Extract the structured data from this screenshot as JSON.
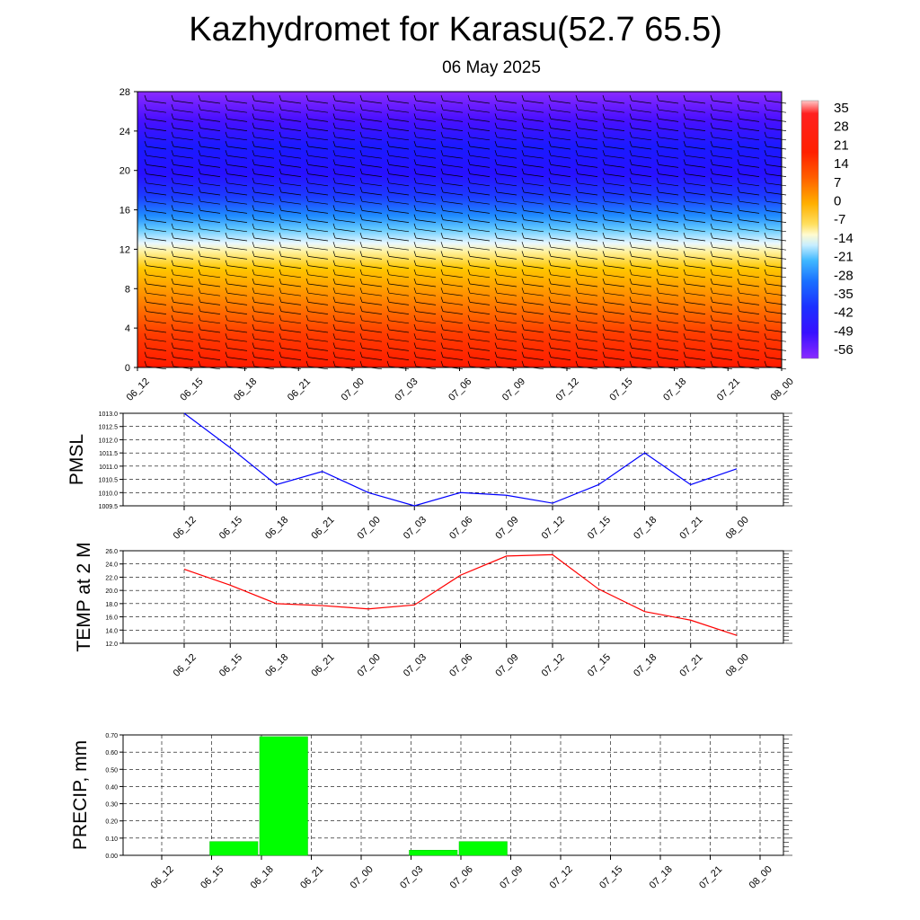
{
  "header": {
    "title": "Kazhydromet for Karasu(52.7 65.5)",
    "subtitle": "06 May 2025"
  },
  "time_labels": [
    "06_12",
    "06_15",
    "06_18",
    "06_21",
    "07_00",
    "07_03",
    "07_06",
    "07_09",
    "07_12",
    "07_15",
    "07_18",
    "07_21",
    "08_00"
  ],
  "colorbar": {
    "labels": [
      "35",
      "28",
      "21",
      "14",
      "7",
      "0",
      "-7",
      "-14",
      "-21",
      "-28",
      "-35",
      "-42",
      "-49",
      "-56"
    ]
  },
  "chart_data": [
    {
      "type": "heatmap",
      "description_title": "",
      "x": [
        "06_12",
        "06_15",
        "06_18",
        "06_21",
        "07_00",
        "07_03",
        "07_06",
        "07_09",
        "07_12",
        "07_15",
        "07_18",
        "07_21",
        "08_00"
      ],
      "y_ticks": [
        0,
        4,
        8,
        12,
        16,
        20,
        24,
        28
      ],
      "ylim": [
        0,
        28
      ],
      "colorbar_ticks": [
        35,
        28,
        21,
        14,
        7,
        0,
        -7,
        -14,
        -21,
        -28,
        -35,
        -42,
        -49,
        -56
      ],
      "temperature_profile": [
        {
          "level": 0,
          "value": 21
        },
        {
          "level": 2,
          "value": 20
        },
        {
          "level": 4,
          "value": 18
        },
        {
          "level": 6,
          "value": 14
        },
        {
          "level": 8,
          "value": 9
        },
        {
          "level": 10,
          "value": 2
        },
        {
          "level": 12,
          "value": -4
        },
        {
          "level": 13,
          "value": -14
        },
        {
          "level": 14,
          "value": -25
        },
        {
          "level": 16,
          "value": -38
        },
        {
          "level": 18,
          "value": -52
        },
        {
          "level": 20,
          "value": -60
        },
        {
          "level": 22,
          "value": -60
        },
        {
          "level": 24,
          "value": -58
        },
        {
          "level": 26,
          "value": -54
        },
        {
          "level": 28,
          "value": -50
        }
      ],
      "wind_barbs": true,
      "colors": [
        "#ff1a00",
        "#ff5a00",
        "#ff9a00",
        "#ffd000",
        "#ffee66",
        "#fffbd0",
        "#dff4ff",
        "#6cd0ff",
        "#1f8cff",
        "#1c47ff",
        "#2a10ff",
        "#5a10ff",
        "#8a2bff"
      ]
    },
    {
      "type": "line",
      "ylabel": "PMSL",
      "x": [
        "06_12",
        "06_15",
        "06_18",
        "06_21",
        "07_00",
        "07_03",
        "07_06",
        "07_09",
        "07_12",
        "07_15",
        "07_18",
        "07_21",
        "08_00"
      ],
      "values": [
        1013.0,
        1011.7,
        1010.3,
        1010.8,
        1010.0,
        1009.5,
        1010.0,
        1009.9,
        1009.6,
        1010.3,
        1011.5,
        1010.3,
        1010.9
      ],
      "ylim": [
        1009.5,
        1013.0
      ],
      "yticks": [
        "1009.5",
        "1010.0",
        "1010.5",
        "1011.0",
        "1011.5",
        "1012.0",
        "1012.5",
        "1013.0"
      ],
      "color": "#0000ff",
      "grid": true
    },
    {
      "type": "line",
      "ylabel": "TEMP at 2 M",
      "x": [
        "06_12",
        "06_15",
        "06_18",
        "06_21",
        "07_00",
        "07_03",
        "07_06",
        "07_09",
        "07_12",
        "07_15",
        "07_18",
        "07_21",
        "08_00"
      ],
      "values": [
        23.2,
        20.8,
        18.0,
        17.7,
        17.2,
        17.8,
        22.3,
        25.2,
        25.4,
        20.2,
        16.8,
        15.5,
        13.2
      ],
      "ylim": [
        12.0,
        26.0
      ],
      "yticks": [
        "12.0",
        "14.0",
        "16.0",
        "18.0",
        "20.0",
        "22.0",
        "24.0",
        "26.0"
      ],
      "color": "#ff0000",
      "grid": true
    },
    {
      "type": "bar",
      "ylabel": "PRECIP, mm",
      "categories": [
        "06_12",
        "06_15",
        "06_18",
        "06_21",
        "07_00",
        "07_03",
        "07_06",
        "07_09",
        "07_12",
        "07_15",
        "07_18",
        "07_21",
        "08_00"
      ],
      "values": [
        0,
        0,
        0.08,
        0.69,
        0,
        0,
        0.03,
        0.08,
        0,
        0,
        0,
        0,
        0
      ],
      "ylim": [
        0,
        0.7
      ],
      "yticks": [
        "0.00",
        "0.10",
        "0.20",
        "0.30",
        "0.40",
        "0.50",
        "0.60",
        "0.70"
      ],
      "color": "#00ff00",
      "grid": true
    }
  ]
}
